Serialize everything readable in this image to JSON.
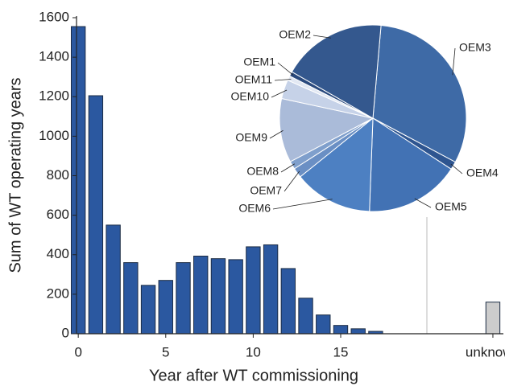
{
  "chart_data": [
    {
      "type": "bar",
      "xlabel": "Year after WT commissioning",
      "ylabel": "Sum of WT operating years",
      "series": [
        {
          "color": "#2b58a0",
          "x": [
            0,
            1,
            2,
            3,
            4,
            5,
            6,
            7,
            8,
            9,
            10,
            11,
            12,
            13,
            14,
            15,
            16,
            17
          ],
          "values": [
            1555,
            1205,
            550,
            360,
            245,
            270,
            360,
            393,
            380,
            375,
            440,
            450,
            330,
            180,
            95,
            42,
            25,
            12
          ]
        },
        {
          "color": "#cccccc",
          "x": [
            23.7
          ],
          "values": [
            160
          ]
        }
      ],
      "xlim": [
        -0.1,
        24.3
      ],
      "xticks": [
        0,
        5,
        10,
        15,
        {
          "value": 23.7,
          "label": "unknown"
        }
      ],
      "ylim": [
        0,
        1600
      ],
      "yticks": [
        0,
        200,
        400,
        600,
        800,
        1000,
        1200,
        1400,
        1600
      ]
    },
    {
      "type": "pie",
      "startangle": 5,
      "categories": [
        "OEM3",
        "OEM4",
        "OEM5",
        "OEM6",
        "OEM7",
        "OEM8",
        "OEM9",
        "OEM10",
        "OEM11",
        "OEM1",
        "OEM2"
      ],
      "values": [
        31.4,
        1.4,
        16.4,
        13.6,
        1.7,
        1.4,
        11.1,
        3.3,
        0.8,
        0.8,
        18.1
      ],
      "colors": [
        "#3e6aa6",
        "#2e5590",
        "#4272b4",
        "#4d80c2",
        "#6a8fc4",
        "#7f9fcc",
        "#aabbd9",
        "#c6d2e8",
        "#e2e8f3",
        "#2a4a7e",
        "#34588e"
      ]
    }
  ]
}
